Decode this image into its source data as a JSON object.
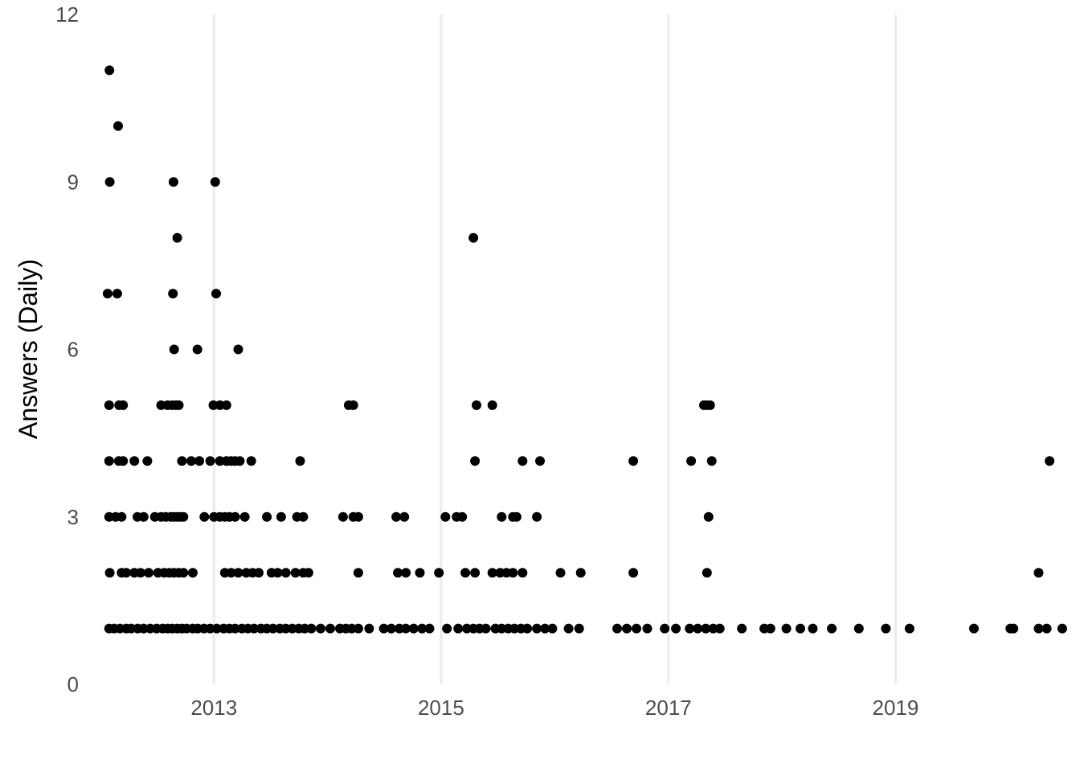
{
  "chart_data": {
    "type": "scatter",
    "title": "",
    "xlabel": "",
    "ylabel": "Answers (Daily)",
    "x_type": "date",
    "xlim": [
      "2011-12-15",
      "2020-06-15"
    ],
    "ylim": [
      0,
      12
    ],
    "x_ticks": [
      {
        "value": "2013-01-01",
        "label": "2013"
      },
      {
        "value": "2015-01-01",
        "label": "2015"
      },
      {
        "value": "2017-01-01",
        "label": "2017"
      },
      {
        "value": "2019-01-01",
        "label": "2019"
      }
    ],
    "y_ticks": [
      {
        "value": 0,
        "label": "0"
      },
      {
        "value": 3,
        "label": "3"
      },
      {
        "value": 6,
        "label": "6"
      },
      {
        "value": 9,
        "label": "9"
      },
      {
        "value": 12,
        "label": "12"
      }
    ],
    "grid": {
      "vertical": true,
      "horizontal": false
    },
    "point_color": "#000000",
    "series": [
      {
        "points": [
          [
            "2012-01-31",
            11
          ],
          [
            "2012-02-28",
            10
          ],
          [
            "2012-02-01",
            9
          ],
          [
            "2012-08-24",
            9
          ],
          [
            "2013-01-05",
            9
          ],
          [
            "2012-09-05",
            8
          ],
          [
            "2015-04-15",
            8
          ],
          [
            "2012-01-25",
            7
          ],
          [
            "2012-02-25",
            7
          ],
          [
            "2012-08-22",
            7
          ],
          [
            "2013-01-08",
            7
          ],
          [
            "2012-08-26",
            6
          ],
          [
            "2012-11-09",
            6
          ],
          [
            "2013-03-20",
            6
          ],
          [
            "2012-01-30",
            5
          ],
          [
            "2012-03-02",
            5
          ],
          [
            "2012-03-15",
            5
          ],
          [
            "2012-07-15",
            5
          ],
          [
            "2012-08-05",
            5
          ],
          [
            "2012-08-20",
            5
          ],
          [
            "2012-09-01",
            5
          ],
          [
            "2012-09-10",
            5
          ],
          [
            "2012-12-30",
            5
          ],
          [
            "2013-01-20",
            5
          ],
          [
            "2013-02-10",
            5
          ],
          [
            "2014-03-10",
            5
          ],
          [
            "2014-03-25",
            5
          ],
          [
            "2015-04-25",
            5
          ],
          [
            "2015-06-15",
            5
          ],
          [
            "2017-04-25",
            5
          ],
          [
            "2017-05-05",
            5
          ],
          [
            "2017-05-15",
            5
          ],
          [
            "2012-01-30",
            4
          ],
          [
            "2012-03-01",
            4
          ],
          [
            "2012-03-15",
            4
          ],
          [
            "2012-04-20",
            4
          ],
          [
            "2012-06-01",
            4
          ],
          [
            "2012-09-20",
            4
          ],
          [
            "2012-10-20",
            4
          ],
          [
            "2012-11-15",
            4
          ],
          [
            "2012-12-20",
            4
          ],
          [
            "2013-01-20",
            4
          ],
          [
            "2013-02-10",
            4
          ],
          [
            "2013-02-25",
            4
          ],
          [
            "2013-03-10",
            4
          ],
          [
            "2013-03-25",
            4
          ],
          [
            "2013-05-01",
            4
          ],
          [
            "2013-10-05",
            4
          ],
          [
            "2015-04-20",
            4
          ],
          [
            "2015-09-20",
            4
          ],
          [
            "2015-11-15",
            4
          ],
          [
            "2016-09-10",
            4
          ],
          [
            "2017-03-15",
            4
          ],
          [
            "2017-05-20",
            4
          ],
          [
            "2020-05-10",
            4
          ],
          [
            "2012-01-30",
            3
          ],
          [
            "2012-02-20",
            3
          ],
          [
            "2012-03-10",
            3
          ],
          [
            "2012-04-30",
            3
          ],
          [
            "2012-05-20",
            3
          ],
          [
            "2012-06-25",
            3
          ],
          [
            "2012-07-15",
            3
          ],
          [
            "2012-07-30",
            3
          ],
          [
            "2012-08-15",
            3
          ],
          [
            "2012-08-25",
            3
          ],
          [
            "2012-09-05",
            3
          ],
          [
            "2012-09-15",
            3
          ],
          [
            "2012-09-25",
            3
          ],
          [
            "2012-12-01",
            3
          ],
          [
            "2013-01-01",
            3
          ],
          [
            "2013-01-20",
            3
          ],
          [
            "2013-02-05",
            3
          ],
          [
            "2013-02-20",
            3
          ],
          [
            "2013-03-10",
            3
          ],
          [
            "2013-04-10",
            3
          ],
          [
            "2013-06-20",
            3
          ],
          [
            "2013-08-05",
            3
          ],
          [
            "2013-09-25",
            3
          ],
          [
            "2013-10-15",
            3
          ],
          [
            "2014-02-20",
            3
          ],
          [
            "2014-03-25",
            3
          ],
          [
            "2014-04-10",
            3
          ],
          [
            "2014-08-10",
            3
          ],
          [
            "2014-09-05",
            3
          ],
          [
            "2015-01-15",
            3
          ],
          [
            "2015-02-20",
            3
          ],
          [
            "2015-03-10",
            3
          ],
          [
            "2015-07-15",
            3
          ],
          [
            "2015-08-20",
            3
          ],
          [
            "2015-09-01",
            3
          ],
          [
            "2015-11-05",
            3
          ],
          [
            "2017-05-10",
            3
          ],
          [
            "2012-02-01",
            2
          ],
          [
            "2012-03-10",
            2
          ],
          [
            "2012-03-25",
            2
          ],
          [
            "2012-04-20",
            2
          ],
          [
            "2012-05-10",
            2
          ],
          [
            "2012-06-05",
            2
          ],
          [
            "2012-07-05",
            2
          ],
          [
            "2012-07-25",
            2
          ],
          [
            "2012-08-10",
            2
          ],
          [
            "2012-08-25",
            2
          ],
          [
            "2012-09-10",
            2
          ],
          [
            "2012-09-25",
            2
          ],
          [
            "2012-10-25",
            2
          ],
          [
            "2013-02-05",
            2
          ],
          [
            "2013-02-25",
            2
          ],
          [
            "2013-03-20",
            2
          ],
          [
            "2013-04-15",
            2
          ],
          [
            "2013-05-05",
            2
          ],
          [
            "2013-05-25",
            2
          ],
          [
            "2013-07-05",
            2
          ],
          [
            "2013-07-25",
            2
          ],
          [
            "2013-08-20",
            2
          ],
          [
            "2013-09-20",
            2
          ],
          [
            "2013-10-15",
            2
          ],
          [
            "2013-11-01",
            2
          ],
          [
            "2014-04-10",
            2
          ],
          [
            "2014-08-15",
            2
          ],
          [
            "2014-09-10",
            2
          ],
          [
            "2014-10-25",
            2
          ],
          [
            "2014-12-25",
            2
          ],
          [
            "2015-03-20",
            2
          ],
          [
            "2015-04-20",
            2
          ],
          [
            "2015-06-15",
            2
          ],
          [
            "2015-07-10",
            2
          ],
          [
            "2015-07-30",
            2
          ],
          [
            "2015-08-20",
            2
          ],
          [
            "2015-09-20",
            2
          ],
          [
            "2016-01-20",
            2
          ],
          [
            "2016-03-25",
            2
          ],
          [
            "2016-09-10",
            2
          ],
          [
            "2017-05-05",
            2
          ],
          [
            "2020-04-05",
            2
          ],
          [
            "2012-01-30",
            1
          ],
          [
            "2012-02-15",
            1
          ],
          [
            "2012-03-05",
            1
          ],
          [
            "2012-03-25",
            1
          ],
          [
            "2012-04-10",
            1
          ],
          [
            "2012-05-01",
            1
          ],
          [
            "2012-05-20",
            1
          ],
          [
            "2012-06-10",
            1
          ],
          [
            "2012-07-01",
            1
          ],
          [
            "2012-07-20",
            1
          ],
          [
            "2012-08-05",
            1
          ],
          [
            "2012-08-20",
            1
          ],
          [
            "2012-09-05",
            1
          ],
          [
            "2012-09-20",
            1
          ],
          [
            "2012-10-05",
            1
          ],
          [
            "2012-10-25",
            1
          ],
          [
            "2012-11-10",
            1
          ],
          [
            "2012-11-30",
            1
          ],
          [
            "2012-12-20",
            1
          ],
          [
            "2013-01-10",
            1
          ],
          [
            "2013-02-01",
            1
          ],
          [
            "2013-02-20",
            1
          ],
          [
            "2013-03-10",
            1
          ],
          [
            "2013-04-01",
            1
          ],
          [
            "2013-04-20",
            1
          ],
          [
            "2013-05-10",
            1
          ],
          [
            "2013-06-01",
            1
          ],
          [
            "2013-06-20",
            1
          ],
          [
            "2013-07-10",
            1
          ],
          [
            "2013-08-01",
            1
          ],
          [
            "2013-08-20",
            1
          ],
          [
            "2013-09-10",
            1
          ],
          [
            "2013-10-01",
            1
          ],
          [
            "2013-10-20",
            1
          ],
          [
            "2013-11-10",
            1
          ],
          [
            "2013-12-10",
            1
          ],
          [
            "2014-01-10",
            1
          ],
          [
            "2014-02-10",
            1
          ],
          [
            "2014-03-01",
            1
          ],
          [
            "2014-03-20",
            1
          ],
          [
            "2014-04-10",
            1
          ],
          [
            "2014-05-15",
            1
          ],
          [
            "2014-07-01",
            1
          ],
          [
            "2014-07-25",
            1
          ],
          [
            "2014-08-20",
            1
          ],
          [
            "2014-09-10",
            1
          ],
          [
            "2014-10-05",
            1
          ],
          [
            "2014-11-01",
            1
          ],
          [
            "2014-11-25",
            1
          ],
          [
            "2015-01-20",
            1
          ],
          [
            "2015-02-25",
            1
          ],
          [
            "2015-03-25",
            1
          ],
          [
            "2015-04-15",
            1
          ],
          [
            "2015-05-05",
            1
          ],
          [
            "2015-05-25",
            1
          ],
          [
            "2015-06-25",
            1
          ],
          [
            "2015-07-15",
            1
          ],
          [
            "2015-08-05",
            1
          ],
          [
            "2015-08-25",
            1
          ],
          [
            "2015-09-15",
            1
          ],
          [
            "2015-10-05",
            1
          ],
          [
            "2015-11-05",
            1
          ],
          [
            "2015-12-01",
            1
          ],
          [
            "2015-12-25",
            1
          ],
          [
            "2016-02-15",
            1
          ],
          [
            "2016-03-20",
            1
          ],
          [
            "2016-07-20",
            1
          ],
          [
            "2016-08-20",
            1
          ],
          [
            "2016-09-20",
            1
          ],
          [
            "2016-10-25",
            1
          ],
          [
            "2016-12-20",
            1
          ],
          [
            "2017-01-25",
            1
          ],
          [
            "2017-03-10",
            1
          ],
          [
            "2017-04-05",
            1
          ],
          [
            "2017-05-01",
            1
          ],
          [
            "2017-05-25",
            1
          ],
          [
            "2017-06-15",
            1
          ],
          [
            "2017-08-25",
            1
          ],
          [
            "2017-11-05",
            1
          ],
          [
            "2017-11-25",
            1
          ],
          [
            "2018-01-15",
            1
          ],
          [
            "2018-03-01",
            1
          ],
          [
            "2018-04-10",
            1
          ],
          [
            "2018-06-10",
            1
          ],
          [
            "2018-09-05",
            1
          ],
          [
            "2018-12-01",
            1
          ],
          [
            "2019-02-15",
            1
          ],
          [
            "2019-09-10",
            1
          ],
          [
            "2020-01-05",
            1
          ],
          [
            "2020-01-15",
            1
          ],
          [
            "2020-04-05",
            1
          ],
          [
            "2020-05-01",
            1
          ],
          [
            "2020-06-20",
            1
          ]
        ]
      }
    ]
  }
}
